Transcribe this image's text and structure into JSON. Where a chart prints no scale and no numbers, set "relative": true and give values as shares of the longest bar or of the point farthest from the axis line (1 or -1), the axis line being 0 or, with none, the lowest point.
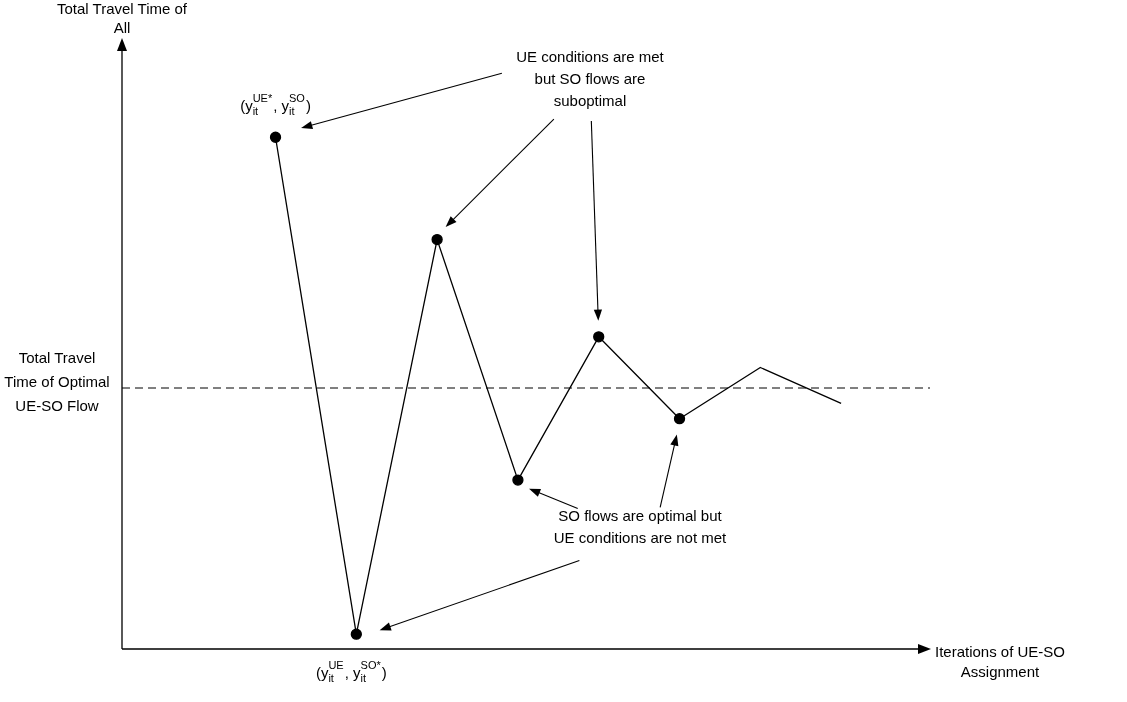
{
  "chart_data": {
    "type": "line",
    "relative": true,
    "xlabel": "Iterations of UE-SO Assignment",
    "marker": "circle",
    "line_style": "solid",
    "legend": false,
    "categories": [
      null,
      null,
      null,
      null,
      null,
      null,
      null,
      null
    ],
    "series": [
      {
        "color": "#000000",
        "values": [
          1,
          0.029,
          0.8,
          0.33,
          0.61,
          0.45,
          null,
          null
        ]
      },
      {
        "color": "#000000",
        "marker": "none",
        "values": [
          null,
          null,
          null,
          null,
          null,
          0.45,
          0.55,
          0.48
        ]
      }
    ],
    "ref_lines": [
      {
        "axis": "y",
        "value": 0.51,
        "label": "Total Travel Time of Optimal UE-SO Flow",
        "color": "#000000",
        "line_style": "dashed"
      }
    ],
    "annotations": [
      "Total Travel Time of All",
      {
        "text": "(y$_{it}$$^{UE*}$, y$_{it}$$^{SO}$)",
        "y": 1
      },
      {
        "text": "(y$_{it}$$^{UE}$, y$_{it}$$^{SO*}$)",
        "y": 0.029
      },
      "UE conditions are met but SO flows are suboptimal",
      "SO flows are optimal but UE conditions are not met"
    ]
  }
}
